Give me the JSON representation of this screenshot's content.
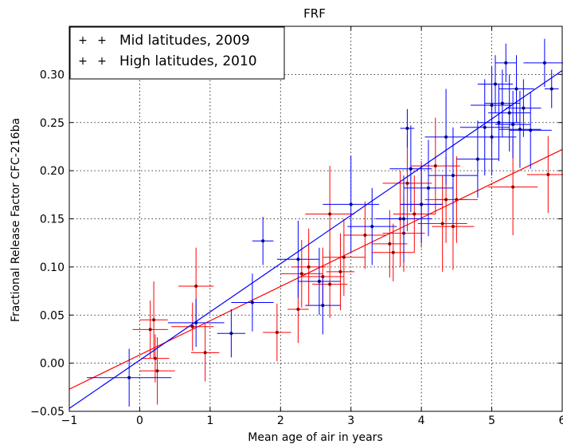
{
  "chart_data": {
    "type": "scatter",
    "title": "FRF",
    "xlabel": "Mean age of air in years",
    "ylabel": "Fractional Release Factor CFC-216ba",
    "xlim": [
      -1,
      6
    ],
    "ylim": [
      -0.05,
      0.35
    ],
    "xticks": [
      -1,
      0,
      1,
      2,
      3,
      4,
      5,
      6
    ],
    "xtick_labels": [
      "−1",
      "0",
      "1",
      "2",
      "3",
      "4",
      "5",
      "6"
    ],
    "yticks": [
      -0.05,
      0.0,
      0.05,
      0.1,
      0.15,
      0.2,
      0.25,
      0.3
    ],
    "ytick_labels": [
      "−0.05",
      "0.00",
      "0.05",
      "0.10",
      "0.15",
      "0.20",
      "0.25",
      "0.30"
    ],
    "grid": true,
    "legend_position": "top-left",
    "series": [
      {
        "name": "Mid latitudes, 2009",
        "color": "#ff0000",
        "marker_color": "#8b0000",
        "fit": [
          [
            -1,
            -0.027
          ],
          [
            6,
            0.222
          ]
        ],
        "points": [
          {
            "x": 0.15,
            "y": 0.035,
            "xerr": 0.25,
            "yerr": 0.03
          },
          {
            "x": 0.2,
            "y": 0.045,
            "xerr": 0.2,
            "yerr": 0.04
          },
          {
            "x": 0.22,
            "y": 0.005,
            "xerr": 0.2,
            "yerr": 0.025
          },
          {
            "x": 0.25,
            "y": -0.008,
            "xerr": 0.25,
            "yerr": 0.035
          },
          {
            "x": 0.75,
            "y": 0.038,
            "xerr": 0.3,
            "yerr": 0.025
          },
          {
            "x": 0.8,
            "y": 0.08,
            "xerr": 0.25,
            "yerr": 0.04
          },
          {
            "x": 0.93,
            "y": 0.011,
            "xerr": 0.2,
            "yerr": 0.03
          },
          {
            "x": 1.95,
            "y": 0.032,
            "xerr": 0.2,
            "yerr": 0.03
          },
          {
            "x": 2.25,
            "y": 0.056,
            "xerr": 0.15,
            "yerr": 0.035
          },
          {
            "x": 2.3,
            "y": 0.093,
            "xerr": 0.3,
            "yerr": 0.035
          },
          {
            "x": 2.4,
            "y": 0.1,
            "xerr": 0.25,
            "yerr": 0.04
          },
          {
            "x": 2.6,
            "y": 0.09,
            "xerr": 0.3,
            "yerr": 0.03
          },
          {
            "x": 2.7,
            "y": 0.155,
            "xerr": 0.35,
            "yerr": 0.05
          },
          {
            "x": 2.7,
            "y": 0.082,
            "xerr": 0.25,
            "yerr": 0.035
          },
          {
            "x": 2.85,
            "y": 0.095,
            "xerr": 0.2,
            "yerr": 0.04
          },
          {
            "x": 2.9,
            "y": 0.11,
            "xerr": 0.3,
            "yerr": 0.04
          },
          {
            "x": 3.2,
            "y": 0.133,
            "xerr": 0.3,
            "yerr": 0.035
          },
          {
            "x": 3.55,
            "y": 0.124,
            "xerr": 0.25,
            "yerr": 0.035
          },
          {
            "x": 3.6,
            "y": 0.115,
            "xerr": 0.3,
            "yerr": 0.03
          },
          {
            "x": 3.7,
            "y": 0.15,
            "xerr": 0.35,
            "yerr": 0.05
          },
          {
            "x": 3.75,
            "y": 0.135,
            "xerr": 0.3,
            "yerr": 0.04
          },
          {
            "x": 3.8,
            "y": 0.187,
            "xerr": 0.35,
            "yerr": 0.05
          },
          {
            "x": 3.9,
            "y": 0.155,
            "xerr": 0.3,
            "yerr": 0.04
          },
          {
            "x": 4.0,
            "y": 0.165,
            "xerr": 0.3,
            "yerr": 0.045
          },
          {
            "x": 4.2,
            "y": 0.205,
            "xerr": 0.35,
            "yerr": 0.05
          },
          {
            "x": 4.3,
            "y": 0.145,
            "xerr": 0.35,
            "yerr": 0.05
          },
          {
            "x": 4.35,
            "y": 0.17,
            "xerr": 0.3,
            "yerr": 0.045
          },
          {
            "x": 4.45,
            "y": 0.142,
            "xerr": 0.3,
            "yerr": 0.045
          },
          {
            "x": 4.5,
            "y": 0.17,
            "xerr": 0.3,
            "yerr": 0.045
          },
          {
            "x": 5.3,
            "y": 0.183,
            "xerr": 0.35,
            "yerr": 0.05
          },
          {
            "x": 5.8,
            "y": 0.196,
            "xerr": 0.3,
            "yerr": 0.04
          }
        ]
      },
      {
        "name": "High latitudes, 2010",
        "color": "#0000ff",
        "marker_color": "#000080",
        "fit": [
          [
            -1,
            -0.047
          ],
          [
            6,
            0.304
          ]
        ],
        "points": [
          {
            "x": -0.15,
            "y": -0.015,
            "xerr": 0.6,
            "yerr": 0.03
          },
          {
            "x": 0.8,
            "y": 0.042,
            "xerr": 0.4,
            "yerr": 0.025
          },
          {
            "x": 1.3,
            "y": 0.031,
            "xerr": 0.2,
            "yerr": 0.025
          },
          {
            "x": 1.6,
            "y": 0.063,
            "xerr": 0.3,
            "yerr": 0.03
          },
          {
            "x": 1.75,
            "y": 0.127,
            "xerr": 0.15,
            "yerr": 0.025
          },
          {
            "x": 2.25,
            "y": 0.108,
            "xerr": 0.3,
            "yerr": 0.04
          },
          {
            "x": 2.55,
            "y": 0.085,
            "xerr": 0.3,
            "yerr": 0.035
          },
          {
            "x": 2.6,
            "y": 0.06,
            "xerr": 0.25,
            "yerr": 0.03
          },
          {
            "x": 3.0,
            "y": 0.165,
            "xerr": 0.4,
            "yerr": 0.05
          },
          {
            "x": 3.3,
            "y": 0.142,
            "xerr": 0.35,
            "yerr": 0.04
          },
          {
            "x": 3.75,
            "y": 0.15,
            "xerr": 0.4,
            "yerr": 0.045
          },
          {
            "x": 3.8,
            "y": 0.244,
            "xerr": 0.1,
            "yerr": 0.02
          },
          {
            "x": 3.85,
            "y": 0.202,
            "xerr": 0.3,
            "yerr": 0.045
          },
          {
            "x": 4.0,
            "y": 0.165,
            "xerr": 0.3,
            "yerr": 0.04
          },
          {
            "x": 4.1,
            "y": 0.182,
            "xerr": 0.35,
            "yerr": 0.05
          },
          {
            "x": 4.35,
            "y": 0.235,
            "xerr": 0.3,
            "yerr": 0.05
          },
          {
            "x": 4.45,
            "y": 0.195,
            "xerr": 0.35,
            "yerr": 0.05
          },
          {
            "x": 4.8,
            "y": 0.212,
            "xerr": 0.3,
            "yerr": 0.04
          },
          {
            "x": 4.9,
            "y": 0.245,
            "xerr": 0.35,
            "yerr": 0.05
          },
          {
            "x": 5.0,
            "y": 0.268,
            "xerr": 0.3,
            "yerr": 0.04
          },
          {
            "x": 5.0,
            "y": 0.235,
            "xerr": 0.35,
            "yerr": 0.04
          },
          {
            "x": 5.05,
            "y": 0.29,
            "xerr": 0.25,
            "yerr": 0.03
          },
          {
            "x": 5.1,
            "y": 0.25,
            "xerr": 0.3,
            "yerr": 0.04
          },
          {
            "x": 5.15,
            "y": 0.27,
            "xerr": 0.25,
            "yerr": 0.035
          },
          {
            "x": 5.2,
            "y": 0.312,
            "xerr": 0.15,
            "yerr": 0.02
          },
          {
            "x": 5.25,
            "y": 0.26,
            "xerr": 0.3,
            "yerr": 0.04
          },
          {
            "x": 5.3,
            "y": 0.248,
            "xerr": 0.25,
            "yerr": 0.035
          },
          {
            "x": 5.35,
            "y": 0.285,
            "xerr": 0.25,
            "yerr": 0.035
          },
          {
            "x": 5.4,
            "y": 0.243,
            "xerr": 0.3,
            "yerr": 0.04
          },
          {
            "x": 5.45,
            "y": 0.265,
            "xerr": 0.25,
            "yerr": 0.03
          },
          {
            "x": 5.55,
            "y": 0.242,
            "xerr": 0.3,
            "yerr": 0.04
          },
          {
            "x": 5.75,
            "y": 0.312,
            "xerr": 0.3,
            "yerr": 0.025
          },
          {
            "x": 5.85,
            "y": 0.285,
            "xerr": 0.1,
            "yerr": 0.02
          }
        ]
      }
    ]
  }
}
